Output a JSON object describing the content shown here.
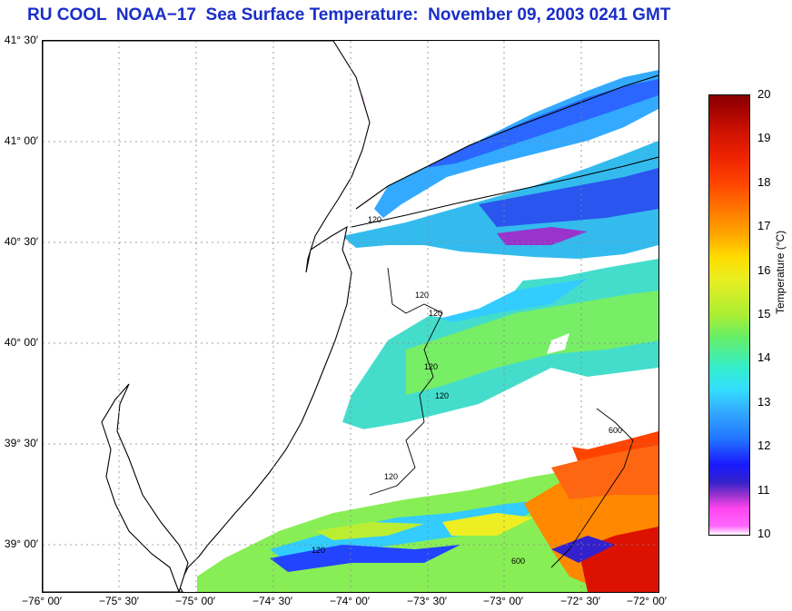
{
  "title": "RU COOL  NOAA−17  Sea Surface Temperature:  November 09, 2003 0241 GMT",
  "latitude_labels": [
    "41° 30′",
    "41° 00′",
    "40° 30′",
    "40° 00′",
    "39° 30′",
    "39° 00′"
  ],
  "longitude_labels": [
    "−76° 00′",
    "−75° 30′",
    "−75° 00′",
    "−74° 30′",
    "−74° 00′",
    "−73° 30′",
    "−73° 00′",
    "−72° 30′",
    "−72° 00′"
  ],
  "colorbar": {
    "label": "Temperature (°C)",
    "ticks": [
      "20",
      "19",
      "18",
      "17",
      "16",
      "15",
      "14",
      "13",
      "12",
      "11",
      "10"
    ],
    "range": [
      10,
      20
    ]
  },
  "contour_labels": [
    "120",
    "120",
    "120",
    "120",
    "120",
    "120",
    "600",
    "600",
    "120"
  ],
  "colors": {
    "title": "#1a2ec8",
    "land": "#ffffff",
    "coast": "#000000"
  }
}
